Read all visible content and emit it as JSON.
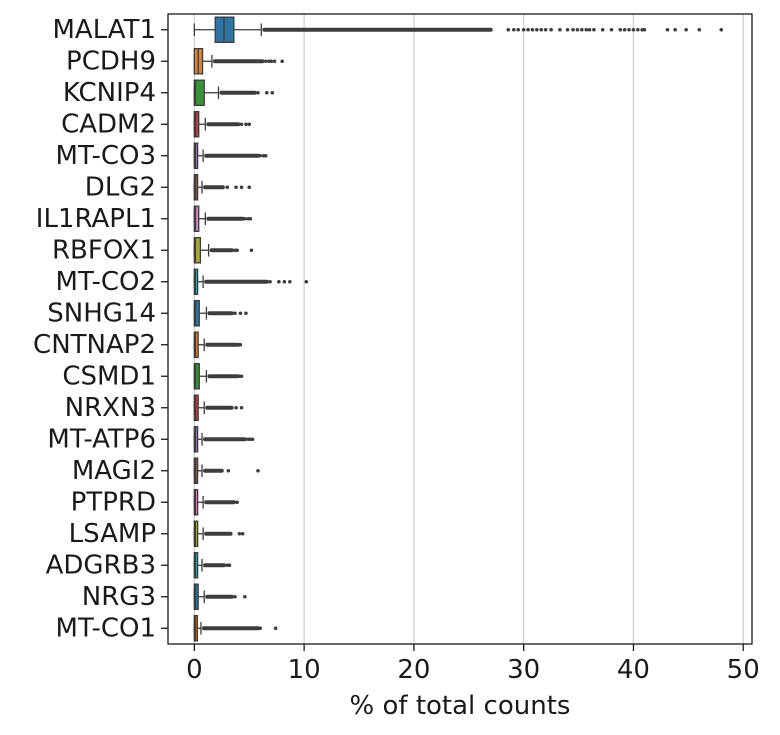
{
  "chart_data": {
    "type": "box",
    "orientation": "horizontal",
    "xlabel": "% of total counts",
    "ylabel": "",
    "title": "",
    "xlim": [
      -2.4,
      50.8
    ],
    "xticks": [
      0,
      10,
      20,
      30,
      40,
      50
    ],
    "grid": "vertical",
    "legend": "none",
    "categories": [
      "MALAT1",
      "PCDH9",
      "KCNIP4",
      "CADM2",
      "MT-CO3",
      "DLG2",
      "IL1RAPL1",
      "RBFOX1",
      "MT-CO2",
      "SNHG14",
      "CNTNAP2",
      "CSMD1",
      "NRXN3",
      "MT-ATP6",
      "MAGI2",
      "PTPRD",
      "LSAMP",
      "ADGRB3",
      "NRG3",
      "MT-CO1"
    ],
    "colors": [
      "#3274a1",
      "#e1812c",
      "#3a923a",
      "#c03d3e",
      "#9372b2",
      "#845b53",
      "#d684bd",
      "#a9aa35",
      "#3d9fb0",
      "#3274a1",
      "#e1812c",
      "#3a923a",
      "#c03d3e",
      "#9372b2",
      "#845b53",
      "#d684bd",
      "#a9aa35",
      "#3d9fb0",
      "#3274a1",
      "#e1812c"
    ],
    "boxes": [
      {
        "name": "MALAT1",
        "q1": 1.9,
        "median": 2.7,
        "q3": 3.6,
        "whisker_low": 0.0,
        "whisker_high": 6.1,
        "outlier_max": 48.0,
        "outliers_dense_to": 27.0,
        "outliers": [
          28.6,
          29.1,
          29.5,
          30.0,
          30.4,
          30.8,
          31.2,
          31.6,
          32.0,
          32.5,
          33.3,
          34.0,
          34.5,
          34.9,
          35.3,
          35.7,
          36.0,
          36.4,
          37.2,
          38.0,
          38.8,
          39.2,
          39.6,
          40.0,
          40.4,
          40.8,
          41.0,
          43.1,
          43.8,
          44.8,
          46.0,
          48.0
        ]
      },
      {
        "name": "PCDH9",
        "q1": 0.0,
        "median": 0.35,
        "q3": 0.75,
        "whisker_low": 0.0,
        "whisker_high": 1.6,
        "outlier_max": 8.0,
        "outliers_dense_to": 6.2,
        "outliers": [
          6.5,
          6.8,
          7.0,
          7.3,
          8.0
        ]
      },
      {
        "name": "KCNIP4",
        "q1": 0.0,
        "median": 0.1,
        "q3": 0.9,
        "whisker_low": 0.0,
        "whisker_high": 2.2,
        "outlier_max": 7.1,
        "outliers_dense_to": 5.5,
        "outliers": [
          5.8,
          6.6,
          7.1
        ]
      },
      {
        "name": "CADM2",
        "q1": 0.0,
        "median": 0.1,
        "q3": 0.4,
        "whisker_low": 0.0,
        "whisker_high": 1.0,
        "outlier_max": 5.0,
        "outliers_dense_to": 4.0,
        "outliers": [
          4.3,
          4.7,
          5.0
        ]
      },
      {
        "name": "MT-CO3",
        "q1": 0.0,
        "median": 0.1,
        "q3": 0.3,
        "whisker_low": 0.0,
        "whisker_high": 0.8,
        "outlier_max": 6.5,
        "outliers_dense_to": 5.8,
        "outliers": [
          6.0,
          6.3,
          6.5
        ]
      },
      {
        "name": "DLG2",
        "q1": 0.0,
        "median": 0.1,
        "q3": 0.3,
        "whisker_low": 0.0,
        "whisker_high": 0.7,
        "outlier_max": 5.0,
        "outliers_dense_to": 2.6,
        "outliers": [
          3.0,
          3.8,
          4.3,
          5.0
        ]
      },
      {
        "name": "IL1RAPL1",
        "q1": 0.0,
        "median": 0.1,
        "q3": 0.4,
        "whisker_low": 0.0,
        "whisker_high": 1.0,
        "outlier_max": 5.1,
        "outliers_dense_to": 4.4,
        "outliers": [
          4.6,
          4.9,
          5.1
        ]
      },
      {
        "name": "RBFOX1",
        "q1": 0.0,
        "median": 0.1,
        "q3": 0.55,
        "whisker_low": 0.0,
        "whisker_high": 1.3,
        "outlier_max": 5.2,
        "outliers_dense_to": 3.4,
        "outliers": [
          3.7,
          3.9,
          5.2
        ]
      },
      {
        "name": "MT-CO2",
        "q1": 0.0,
        "median": 0.1,
        "q3": 0.3,
        "whisker_low": 0.0,
        "whisker_high": 0.8,
        "outlier_max": 10.2,
        "outliers_dense_to": 6.6,
        "outliers": [
          6.9,
          7.7,
          8.2,
          8.7,
          10.2
        ]
      },
      {
        "name": "SNHG14",
        "q1": 0.0,
        "median": 0.1,
        "q3": 0.45,
        "whisker_low": 0.0,
        "whisker_high": 1.1,
        "outlier_max": 4.7,
        "outliers_dense_to": 3.4,
        "outliers": [
          3.7,
          4.2,
          4.7
        ]
      },
      {
        "name": "CNTNAP2",
        "q1": 0.0,
        "median": 0.1,
        "q3": 0.35,
        "whisker_low": 0.0,
        "whisker_high": 0.9,
        "outlier_max": 4.2,
        "outliers_dense_to": 4.0,
        "outliers": [
          4.2
        ]
      },
      {
        "name": "CSMD1",
        "q1": 0.0,
        "median": 0.1,
        "q3": 0.45,
        "whisker_low": 0.0,
        "whisker_high": 1.1,
        "outlier_max": 4.3,
        "outliers_dense_to": 3.9,
        "outliers": [
          4.1,
          4.3
        ]
      },
      {
        "name": "NRXN3",
        "q1": 0.0,
        "median": 0.1,
        "q3": 0.35,
        "whisker_low": 0.0,
        "whisker_high": 0.9,
        "outlier_max": 4.3,
        "outliers_dense_to": 3.4,
        "outliers": [
          3.8,
          4.3
        ]
      },
      {
        "name": "MT-ATP6",
        "q1": 0.0,
        "median": 0.1,
        "q3": 0.3,
        "whisker_low": 0.0,
        "whisker_high": 0.7,
        "outlier_max": 5.3,
        "outliers_dense_to": 4.6,
        "outliers": [
          4.9,
          5.1,
          5.3
        ]
      },
      {
        "name": "MAGI2",
        "q1": 0.0,
        "median": 0.1,
        "q3": 0.3,
        "whisker_low": 0.0,
        "whisker_high": 0.7,
        "outlier_max": 5.8,
        "outliers_dense_to": 2.5,
        "outliers": [
          3.1,
          5.8
        ]
      },
      {
        "name": "PTPRD",
        "q1": 0.0,
        "median": 0.1,
        "q3": 0.3,
        "whisker_low": 0.0,
        "whisker_high": 0.8,
        "outlier_max": 3.9,
        "outliers_dense_to": 3.6,
        "outliers": [
          3.9
        ]
      },
      {
        "name": "LSAMP",
        "q1": 0.0,
        "median": 0.1,
        "q3": 0.3,
        "whisker_low": 0.0,
        "whisker_high": 0.8,
        "outlier_max": 4.4,
        "outliers_dense_to": 3.3,
        "outliers": [
          4.1,
          4.4
        ]
      },
      {
        "name": "ADGRB3",
        "q1": 0.0,
        "median": 0.1,
        "q3": 0.3,
        "whisker_low": 0.0,
        "whisker_high": 0.7,
        "outlier_max": 3.2,
        "outliers_dense_to": 2.7,
        "outliers": [
          3.0,
          3.2
        ]
      },
      {
        "name": "NRG3",
        "q1": 0.0,
        "median": 0.1,
        "q3": 0.35,
        "whisker_low": 0.0,
        "whisker_high": 0.9,
        "outlier_max": 4.6,
        "outliers_dense_to": 3.4,
        "outliers": [
          3.7,
          4.6
        ]
      },
      {
        "name": "MT-CO1",
        "q1": 0.0,
        "median": 0.1,
        "q3": 0.25,
        "whisker_low": 0.0,
        "whisker_high": 0.6,
        "outlier_max": 7.4,
        "outliers_dense_to": 5.8,
        "outliers": [
          6.0,
          7.4
        ]
      }
    ]
  }
}
